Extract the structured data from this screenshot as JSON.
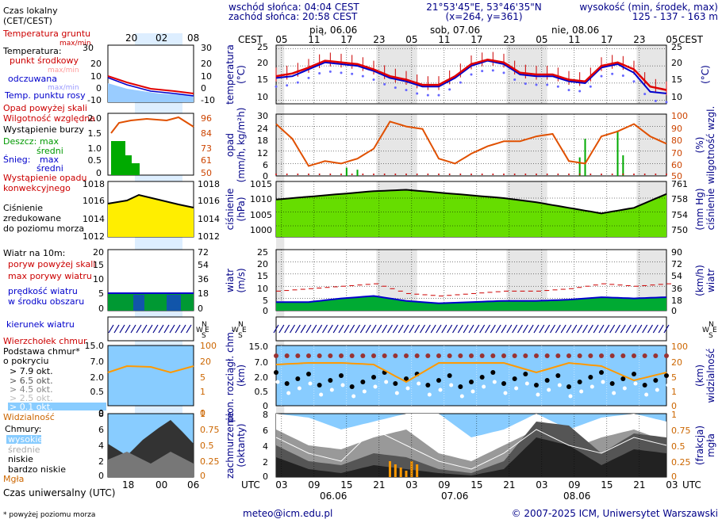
{
  "header": {
    "sunrise": "wschód słońca: 04:04 CEST",
    "sunset": "zachód słońca: 20:58 CEST",
    "coords": "21°53'45\"E, 53°46'35\"N",
    "grid": "(x=264,  y=361)",
    "altitude_label": "wysokość (min, środek, max)",
    "altitude_values": "125 - 137 - 163 m"
  },
  "legend": {
    "local_time": "Czas lokalny",
    "local_time_zones": "(CET/CEST)",
    "ground_temp": "Temperatura gruntu",
    "ground_temp_sub": "max/min",
    "temperature": "Temperatura:",
    "mid_point": "punkt środkowy",
    "max_min": "max/min",
    "perceived": "odczuwana",
    "dew_point": "Temp. punktu rosy",
    "fog_above": "Opad powyżej skali",
    "humidity": "Wilgotność względna",
    "storm": "Wystąpienie burzy",
    "rain_label": "Deszcz:",
    "snow_label": "Śnieg:",
    "max": "max",
    "mean": "średni",
    "precip_occurrence": "Wystąpienie opadu",
    "precip_occurrence2": "konwekcyjnego",
    "pressure": "Ciśnienie",
    "pressure2": "zredukowane",
    "pressure3": "do poziomu morza",
    "wind_at": "Wiatr na 10m:",
    "gust_above": "poryw powyżej skali",
    "max_gusts": "max porywy wiatru",
    "wind_speed": "prędkość wiatru",
    "wind_area": "w środku obszaru",
    "wind_dir": "kierunek wiatru",
    "cloud_top": "Wierzchołek chmur",
    "cloud_base": "Podstawa chmur*",
    "cloud_base2": "o pokryciu",
    "okt79": "> 7.9 okt.",
    "okt65": "> 6.5 okt.",
    "okt45": "> 4.5 okt.",
    "okt25": "> 2.5 okt.",
    "okt01": "> 0.1 okt.",
    "visibility": "Widzialność",
    "clouds": "Chmury:",
    "high": "wysokie",
    "medium": "średnie",
    "low": "niskie",
    "very_low": "bardzo niskie",
    "fog": "Mgła",
    "utc_time": "Czas uniwersalny (UTC)",
    "footnote": "* powyżej poziomu morza"
  },
  "axes": {
    "cest": "CEST",
    "utc": "UTC",
    "temp_label": "temperatura",
    "temp_unit": "(°C)",
    "precip_label": "opad",
    "precip_unit": "(mm/h, kg/m²h)",
    "hum_label": "wilgotność wzgl.",
    "hum_unit": "(%)",
    "press_label": "ciśnienie",
    "press_unit": "(hPa)",
    "press_unit_r": "(mm Hg)",
    "wind_label": "wiatr",
    "wind_unit": "(m/s)",
    "wind_unit_r": "(km/h)",
    "cloud_label": "pion. rozciągł. chm.",
    "cloud_unit": "(km)",
    "vis_label": "widzialność",
    "vis_unit": "(km)",
    "cover_label": "zachmurzenie",
    "cover_unit": "(oktanty)",
    "fog_label": "mgła",
    "fog_unit": "(frakcja)",
    "compass_n": "N",
    "compass_w": "W",
    "compass_s": "S",
    "compass_e": "E"
  },
  "days": {
    "top": [
      "pią, 06.06",
      "sob, 07.06",
      "nie, 08.06"
    ],
    "bottom": [
      "06.06",
      "07.06",
      "08.06"
    ]
  },
  "ticks": {
    "local_hours": [
      "05",
      "11",
      "17",
      "23",
      "05",
      "11",
      "17",
      "23",
      "05",
      "11",
      "17",
      "23",
      "05"
    ],
    "utc_hours": [
      "03",
      "09",
      "15",
      "21",
      "03",
      "09",
      "15",
      "21",
      "03",
      "09",
      "15",
      "21",
      "03"
    ],
    "legend_local": [
      "20",
      "02",
      "08"
    ],
    "legend_utc": [
      "18",
      "00",
      "06"
    ],
    "temp_l": [
      "25",
      "20",
      "15",
      "10"
    ],
    "temp_r": [
      "25",
      "20",
      "15",
      "10"
    ],
    "temp_legend_l": [
      "30",
      "20",
      "10",
      "0",
      "-10"
    ],
    "temp_legend_r": [
      "30",
      "20",
      "10",
      "0",
      "-10"
    ],
    "precip_l": [
      "30",
      "24",
      "18",
      "12",
      "6",
      "0"
    ],
    "precip_r": [
      "100",
      "90",
      "80",
      "70",
      "60",
      "50"
    ],
    "precip_legend_l": [
      "2.0",
      "1.5",
      "1.0",
      "0.5",
      "0"
    ],
    "precip_legend_r": [
      "96",
      "84",
      "73",
      "61",
      "50"
    ],
    "press_l": [
      "1015",
      "1010",
      "1005",
      "1000"
    ],
    "press_r": [
      "761",
      "758",
      "754",
      "750"
    ],
    "press_legend_l": [
      "1018",
      "1016",
      "1014",
      "1012"
    ],
    "press_legend_r": [
      "1018",
      "1016",
      "1014",
      "1012"
    ],
    "wind_l": [
      "25",
      "20",
      "15",
      "10",
      "5",
      "0"
    ],
    "wind_r": [
      "90",
      "72",
      "54",
      "36",
      "18",
      "0"
    ],
    "wind_legend_l": [
      "20",
      "15",
      "10",
      "5",
      "0"
    ],
    "wind_legend_r": [
      "72",
      "54",
      "36",
      "18",
      "0"
    ],
    "cloud_l": [
      "15.0",
      "7.0",
      "2.0",
      "0.5",
      "0"
    ],
    "cloud_r": [
      "100",
      "20",
      "5",
      "1",
      "0"
    ],
    "cover_l": [
      "8",
      "6",
      "4",
      "2",
      "0"
    ],
    "cover_r": [
      "1",
      "0.75",
      "0.5",
      "0.25",
      "0"
    ]
  },
  "contact": {
    "email": "meteo@icm.edu.pl",
    "copyright": "© 2007-2025 ICM, Uniwersytet Warszawski"
  },
  "colors": {
    "temp": "#e00000",
    "perceived": "#0000cc",
    "humidity": "#e05000",
    "pressure_fill": "#66dd00",
    "wind_fill": "#009900",
    "sky": "#88ccff",
    "night": "#e6e6e6"
  },
  "chart_data": [
    {
      "type": "line",
      "title": "temperatura",
      "ylabel": "(°C)",
      "ylim": [
        9,
        26
      ],
      "x_hours_utc": [
        0,
        3,
        6,
        9,
        12,
        15,
        18,
        21,
        24,
        27,
        30,
        33,
        36,
        39,
        42,
        45,
        48,
        51,
        54,
        57,
        60,
        63,
        66,
        69,
        72
      ],
      "series": [
        {
          "name": "punkt środkowy",
          "values": [
            17,
            17.8,
            19.5,
            21.5,
            21,
            20.5,
            19,
            17,
            16,
            14.5,
            14.5,
            17,
            20.5,
            21.8,
            21,
            18,
            17.5,
            17.5,
            16,
            15.5,
            20,
            21,
            19,
            14,
            13
          ]
        },
        {
          "name": "odczuwana",
          "values": [
            16.5,
            17,
            19,
            21,
            20.5,
            20,
            18.5,
            16.5,
            15.5,
            14,
            14,
            16.5,
            20,
            21.5,
            20.5,
            17.5,
            17,
            17,
            15.5,
            15,
            19.5,
            20.5,
            18,
            12.5,
            12
          ]
        }
      ]
    },
    {
      "type": "line",
      "title": "opad / wilgotność wzgl.",
      "ylabel": "(mm/h, kg/m²h)",
      "ylim": [
        0,
        30
      ],
      "x_hours_utc": [
        0,
        3,
        6,
        9,
        12,
        15,
        18,
        21,
        24,
        27,
        30,
        33,
        36,
        39,
        42,
        45,
        48,
        51,
        54,
        57,
        60,
        63,
        66,
        69,
        72
      ],
      "series": [
        {
          "name": "Wilgotność względna",
          "values": [
            92,
            80,
            58,
            62,
            60,
            64,
            72,
            94,
            90,
            88,
            64,
            60,
            68,
            74,
            78,
            78,
            82,
            84,
            62,
            60,
            82,
            86,
            92,
            82,
            76
          ]
        }
      ]
    },
    {
      "type": "area",
      "title": "ciśnienie",
      "ylabel": "(hPa)",
      "ylim": [
        996,
        1015
      ],
      "x_hours_utc": [
        0,
        6,
        12,
        18,
        24,
        30,
        36,
        42,
        48,
        54,
        60,
        66,
        72
      ],
      "series": [
        {
          "name": "Ciśnienie",
          "values": [
            1009.5,
            1010.5,
            1011.5,
            1012.5,
            1013,
            1012,
            1011,
            1010,
            1008.5,
            1006.5,
            1004.5,
            1006.5,
            1011.5
          ]
        }
      ]
    },
    {
      "type": "area",
      "title": "wiatr",
      "ylabel": "(m/s)",
      "ylim": [
        0,
        25
      ],
      "x_hours_utc": [
        0,
        6,
        12,
        18,
        24,
        30,
        36,
        42,
        48,
        54,
        60,
        66,
        72
      ],
      "series": [
        {
          "name": "prędkość wiatru",
          "values": [
            3.5,
            3.5,
            5,
            6,
            4,
            3,
            3.5,
            4,
            4,
            4.5,
            5.5,
            5,
            5.5
          ]
        },
        {
          "name": "max porywy wiatru",
          "values": [
            8,
            9,
            10,
            11,
            7,
            6,
            7,
            8,
            8,
            9,
            11,
            10,
            11
          ]
        }
      ]
    }
  ]
}
